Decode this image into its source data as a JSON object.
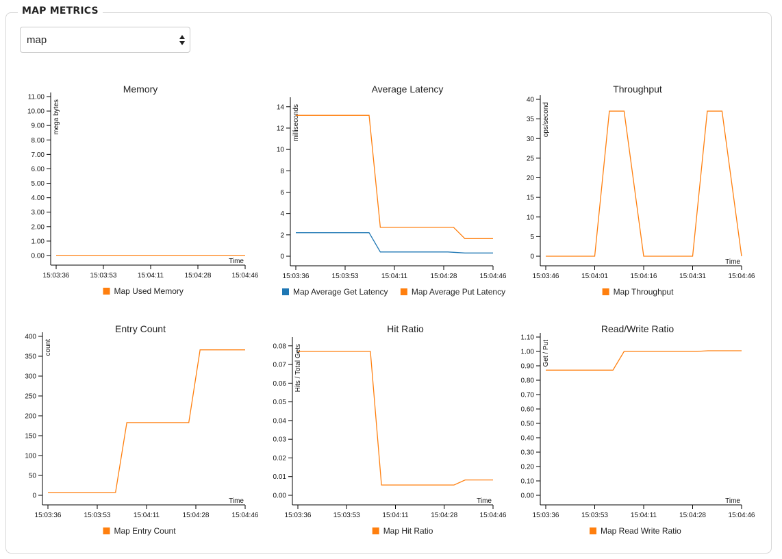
{
  "section_title": "MAP METRICS",
  "map_select": {
    "value": "map"
  },
  "colors": {
    "get_series": "#1f77b4",
    "put_series": "#ff7f0e",
    "default_series": "#ff7f0e"
  },
  "chart_data": [
    {
      "type": "line",
      "title": "Memory",
      "ylabel": "mega bytes",
      "xlabel": "Time",
      "x_ticks": [
        "15:03:36",
        "15:03:53",
        "15:04:11",
        "15:04:28",
        "15:04:46"
      ],
      "y_ticks": [
        "0.00",
        "1.00",
        "2.00",
        "3.00",
        "4.00",
        "5.00",
        "6.00",
        "7.00",
        "8.00",
        "9.00",
        "10.00",
        "11.00"
      ],
      "ylim": [
        0,
        11
      ],
      "xlim": [
        0,
        70
      ],
      "series": [
        {
          "name": "Map Used Memory",
          "color": "#ff7f0e",
          "points": [
            [
              0,
              0.02
            ],
            [
              10,
              0.02
            ],
            [
              20,
              0.02
            ],
            [
              30,
              0.02
            ],
            [
              40,
              0.02
            ],
            [
              50,
              0.02
            ],
            [
              60,
              0.02
            ],
            [
              70,
              0.02
            ]
          ]
        }
      ]
    },
    {
      "type": "line",
      "title": "Average Latency",
      "ylabel": "milliseconds",
      "xlabel": "",
      "x_ticks": [
        "15:03:36",
        "15:03:53",
        "15:04:11",
        "15:04:28",
        "15:04:46"
      ],
      "y_ticks": [
        "0",
        "2",
        "4",
        "6",
        "8",
        "10",
        "12",
        "14"
      ],
      "ylim": [
        0,
        14.5
      ],
      "xlim": [
        0,
        70
      ],
      "series": [
        {
          "name": "Map Average Get Latency",
          "color": "#1f77b4",
          "points": [
            [
              0,
              2.2
            ],
            [
              26,
              2.2
            ],
            [
              30,
              0.4
            ],
            [
              54,
              0.4
            ],
            [
              60,
              0.3
            ],
            [
              70,
              0.3
            ]
          ]
        },
        {
          "name": "Map Average Put Latency",
          "color": "#ff7f0e",
          "points": [
            [
              0,
              13.2
            ],
            [
              26,
              13.2
            ],
            [
              30,
              2.7
            ],
            [
              56,
              2.7
            ],
            [
              60,
              1.65
            ],
            [
              70,
              1.65
            ]
          ]
        }
      ]
    },
    {
      "type": "line",
      "title": "Throughput",
      "ylabel": "ops/second",
      "xlabel": "Time",
      "x_ticks": [
        "15:03:46",
        "15:04:01",
        "15:04:16",
        "15:04:31",
        "15:04:46"
      ],
      "y_ticks": [
        "0",
        "5",
        "10",
        "15",
        "20",
        "25",
        "30",
        "35",
        "40"
      ],
      "ylim": [
        0,
        40
      ],
      "xlim": [
        0,
        60
      ],
      "series": [
        {
          "name": "Map Throughput",
          "color": "#ff7f0e",
          "points": [
            [
              0,
              0
            ],
            [
              15,
              0
            ],
            [
              19.5,
              37
            ],
            [
              24,
              37
            ],
            [
              30,
              0
            ],
            [
              45,
              0
            ],
            [
              49.5,
              37
            ],
            [
              54,
              37
            ],
            [
              60,
              0
            ]
          ]
        }
      ]
    },
    {
      "type": "line",
      "title": "Entry Count",
      "ylabel": "count",
      "xlabel": "Time",
      "x_ticks": [
        "15:03:36",
        "15:03:53",
        "15:04:11",
        "15:04:28",
        "15:04:46"
      ],
      "y_ticks": [
        "0",
        "50",
        "100",
        "150",
        "200",
        "250",
        "300",
        "350",
        "400"
      ],
      "ylim": [
        0,
        400
      ],
      "xlim": [
        0,
        70
      ],
      "series": [
        {
          "name": "Map Entry Count",
          "color": "#ff7f0e",
          "points": [
            [
              0,
              7
            ],
            [
              24,
              7
            ],
            [
              28,
              183
            ],
            [
              50,
              183
            ],
            [
              54,
              366
            ],
            [
              70,
              366
            ]
          ]
        }
      ]
    },
    {
      "type": "line",
      "title": "Hit Ratio",
      "ylabel": "Hits / Total Gets",
      "xlabel": "Time",
      "x_ticks": [
        "15:03:36",
        "15:03:53",
        "15:04:11",
        "15:04:28",
        "15:04:46"
      ],
      "y_ticks": [
        "0.00",
        "0.01",
        "0.02",
        "0.03",
        "0.04",
        "0.05",
        "0.06",
        "0.07",
        "0.08"
      ],
      "ylim": [
        0,
        0.0825
      ],
      "xlim": [
        0,
        70
      ],
      "series": [
        {
          "name": "Map Hit Ratio",
          "color": "#ff7f0e",
          "points": [
            [
              0,
              0.077
            ],
            [
              26,
              0.077
            ],
            [
              30,
              0.0055
            ],
            [
              56,
              0.0055
            ],
            [
              60,
              0.0082
            ],
            [
              70,
              0.0082
            ]
          ]
        }
      ]
    },
    {
      "type": "line",
      "title": "Read/Write Ratio",
      "ylabel": "Get / Put",
      "xlabel": "Time",
      "x_ticks": [
        "15:03:36",
        "15:03:53",
        "15:04:11",
        "15:04:28",
        "15:04:46"
      ],
      "y_ticks": [
        "0.00",
        "0.10",
        "0.20",
        "0.30",
        "0.40",
        "0.50",
        "0.60",
        "0.70",
        "0.80",
        "0.90",
        "1.00",
        "1.10"
      ],
      "ylim": [
        0,
        1.1
      ],
      "xlim": [
        0,
        70
      ],
      "series": [
        {
          "name": "Map Read Write Ratio",
          "color": "#ff7f0e",
          "points": [
            [
              0,
              0.87
            ],
            [
              24,
              0.87
            ],
            [
              28,
              1.0
            ],
            [
              54,
              1.0
            ],
            [
              58,
              1.005
            ],
            [
              70,
              1.005
            ]
          ]
        }
      ]
    }
  ]
}
